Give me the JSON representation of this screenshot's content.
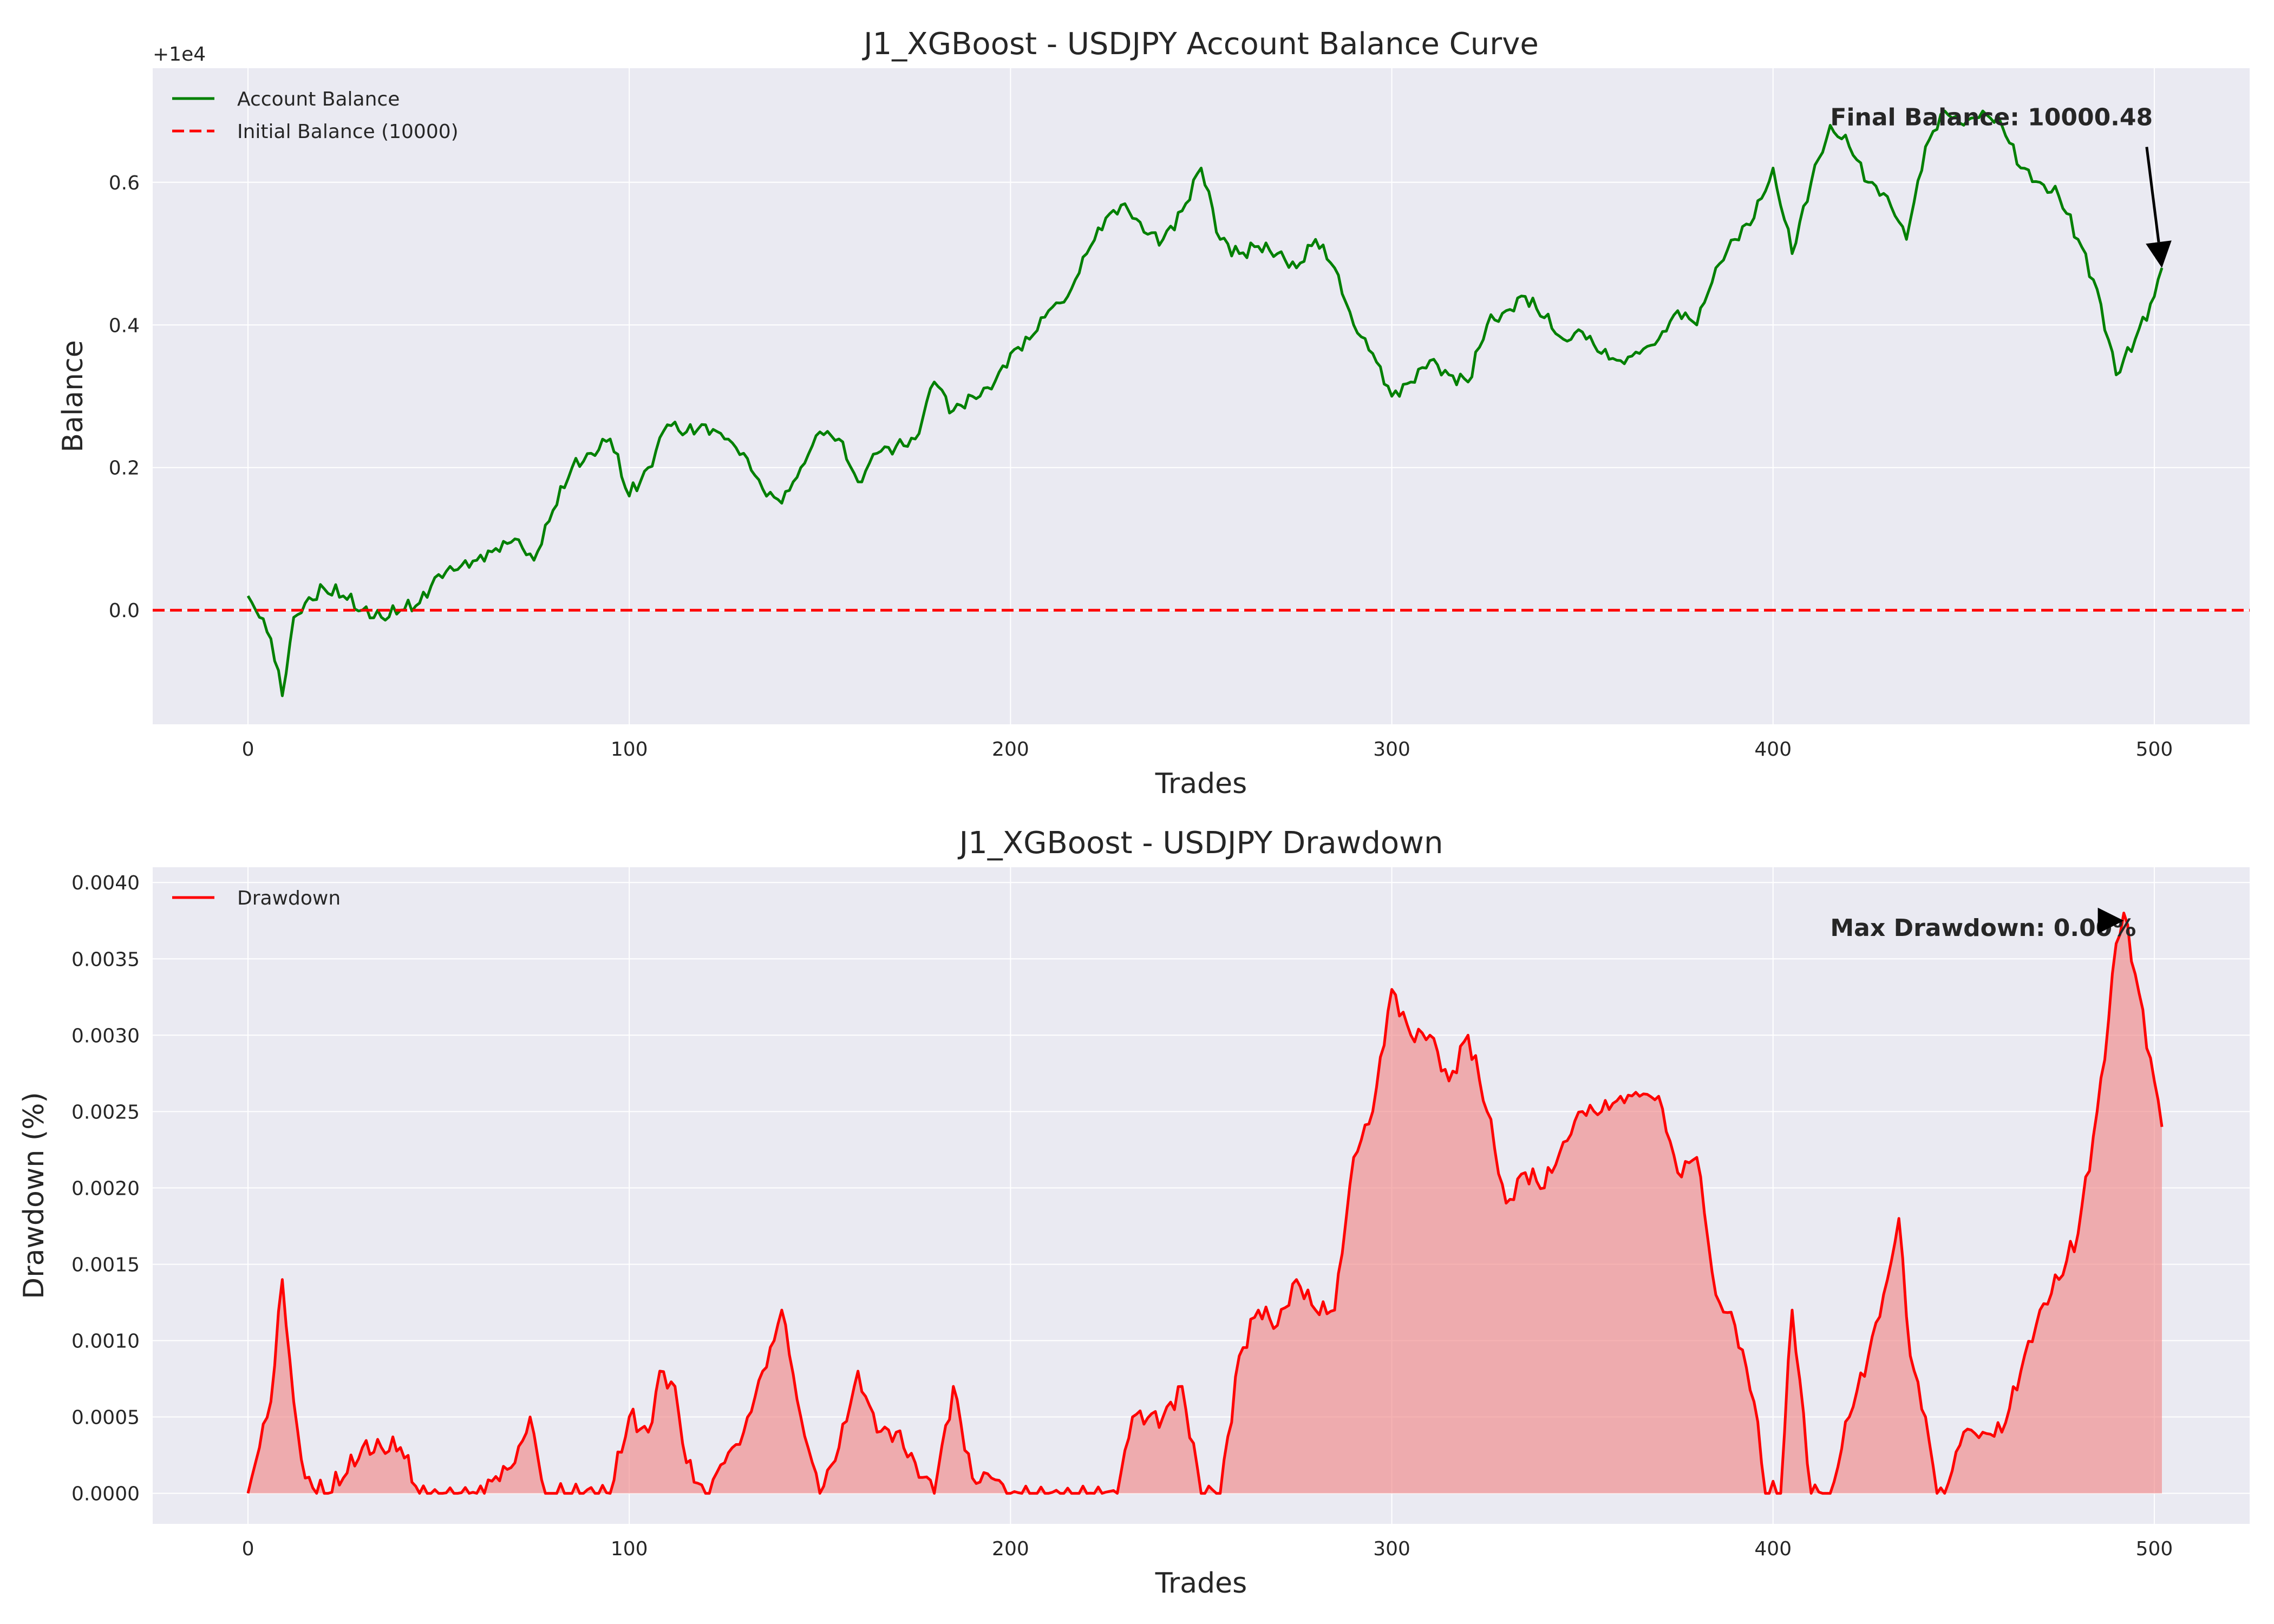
{
  "chart_data": [
    {
      "type": "line",
      "title": "J1_XGBoost - USDJPY Account Balance Curve",
      "xlabel": "Trades",
      "ylabel": "Balance",
      "offset_text": "+1e4",
      "xlim": [
        -25,
        525
      ],
      "ylim": [
        -0.16,
        0.76
      ],
      "xticks": [
        0,
        100,
        200,
        300,
        400,
        500
      ],
      "xtick_labels": [
        "0",
        "100",
        "200",
        "300",
        "400",
        "500"
      ],
      "yticks": [
        0.0,
        0.2,
        0.4,
        0.6
      ],
      "ytick_labels": [
        "0.0",
        "0.2",
        "0.4",
        "0.6"
      ],
      "grid": true,
      "legend_position": "upper-left",
      "series": [
        {
          "name": "Account Balance",
          "color": "#008000",
          "style": "solid",
          "anchors": [
            [
              0,
              0.02
            ],
            [
              3,
              -0.01
            ],
            [
              6,
              -0.04
            ],
            [
              9,
              -0.12
            ],
            [
              12,
              -0.01
            ],
            [
              15,
              0.01
            ],
            [
              20,
              0.03
            ],
            [
              25,
              0.02
            ],
            [
              30,
              0.0
            ],
            [
              35,
              -0.01
            ],
            [
              40,
              0.0
            ],
            [
              45,
              0.01
            ],
            [
              50,
              0.05
            ],
            [
              60,
              0.07
            ],
            [
              70,
              0.1
            ],
            [
              75,
              0.07
            ],
            [
              80,
              0.14
            ],
            [
              85,
              0.2
            ],
            [
              90,
              0.22
            ],
            [
              95,
              0.24
            ],
            [
              100,
              0.16
            ],
            [
              105,
              0.2
            ],
            [
              110,
              0.26
            ],
            [
              115,
              0.25
            ],
            [
              120,
              0.26
            ],
            [
              125,
              0.24
            ],
            [
              130,
              0.22
            ],
            [
              135,
              0.17
            ],
            [
              140,
              0.15
            ],
            [
              145,
              0.2
            ],
            [
              150,
              0.25
            ],
            [
              155,
              0.24
            ],
            [
              160,
              0.18
            ],
            [
              165,
              0.22
            ],
            [
              170,
              0.23
            ],
            [
              175,
              0.24
            ],
            [
              180,
              0.32
            ],
            [
              185,
              0.28
            ],
            [
              190,
              0.3
            ],
            [
              195,
              0.31
            ],
            [
              200,
              0.36
            ],
            [
              205,
              0.38
            ],
            [
              210,
              0.42
            ],
            [
              215,
              0.44
            ],
            [
              220,
              0.5
            ],
            [
              225,
              0.55
            ],
            [
              230,
              0.57
            ],
            [
              235,
              0.53
            ],
            [
              240,
              0.52
            ],
            [
              245,
              0.56
            ],
            [
              250,
              0.62
            ],
            [
              255,
              0.52
            ],
            [
              260,
              0.5
            ],
            [
              265,
              0.51
            ],
            [
              270,
              0.5
            ],
            [
              275,
              0.48
            ],
            [
              280,
              0.52
            ],
            [
              285,
              0.48
            ],
            [
              290,
              0.4
            ],
            [
              295,
              0.36
            ],
            [
              300,
              0.3
            ],
            [
              305,
              0.32
            ],
            [
              310,
              0.35
            ],
            [
              315,
              0.33
            ],
            [
              320,
              0.32
            ],
            [
              325,
              0.4
            ],
            [
              330,
              0.42
            ],
            [
              335,
              0.44
            ],
            [
              340,
              0.41
            ],
            [
              345,
              0.38
            ],
            [
              350,
              0.39
            ],
            [
              355,
              0.36
            ],
            [
              360,
              0.35
            ],
            [
              365,
              0.36
            ],
            [
              370,
              0.38
            ],
            [
              375,
              0.42
            ],
            [
              380,
              0.4
            ],
            [
              385,
              0.48
            ],
            [
              390,
              0.52
            ],
            [
              395,
              0.55
            ],
            [
              400,
              0.62
            ],
            [
              405,
              0.5
            ],
            [
              410,
              0.6
            ],
            [
              415,
              0.68
            ],
            [
              420,
              0.65
            ],
            [
              425,
              0.6
            ],
            [
              430,
              0.58
            ],
            [
              435,
              0.52
            ],
            [
              440,
              0.65
            ],
            [
              445,
              0.7
            ],
            [
              450,
              0.68
            ],
            [
              455,
              0.7
            ],
            [
              460,
              0.68
            ],
            [
              465,
              0.62
            ],
            [
              470,
              0.6
            ],
            [
              475,
              0.58
            ],
            [
              480,
              0.52
            ],
            [
              485,
              0.45
            ],
            [
              490,
              0.33
            ],
            [
              495,
              0.38
            ],
            [
              500,
              0.44
            ],
            [
              502,
              0.48
            ]
          ]
        },
        {
          "name": "Initial Balance (10000)",
          "color": "#ff0000",
          "style": "dashed",
          "y": 0.0
        }
      ],
      "annotations": [
        {
          "text": "Final Balance: 10000.48",
          "point": [
            502,
            0.48
          ],
          "text_at": [
            415,
            0.68
          ]
        }
      ]
    },
    {
      "type": "area",
      "title": "J1_XGBoost - USDJPY Drawdown",
      "xlabel": "Trades",
      "ylabel": "Drawdown (%)",
      "xlim": [
        -25,
        525
      ],
      "ylim": [
        -0.0002,
        0.0041
      ],
      "xticks": [
        0,
        100,
        200,
        300,
        400,
        500
      ],
      "xtick_labels": [
        "0",
        "100",
        "200",
        "300",
        "400",
        "500"
      ],
      "yticks": [
        0.0,
        0.0005,
        0.001,
        0.0015,
        0.002,
        0.0025,
        0.003,
        0.0035,
        0.004
      ],
      "ytick_labels": [
        "0.0000",
        "0.0005",
        "0.0010",
        "0.0015",
        "0.0020",
        "0.0025",
        "0.0030",
        "0.0035",
        "0.0040"
      ],
      "grid": true,
      "legend_position": "upper-left",
      "series": [
        {
          "name": "Drawdown",
          "color": "#ff0000",
          "fill_color": "#f08080",
          "anchors": [
            [
              0,
              0.0
            ],
            [
              3,
              0.0003
            ],
            [
              6,
              0.0006
            ],
            [
              9,
              0.0014
            ],
            [
              12,
              0.0006
            ],
            [
              15,
              0.0001
            ],
            [
              20,
              0.0
            ],
            [
              25,
              0.0001
            ],
            [
              30,
              0.0003
            ],
            [
              35,
              0.0003
            ],
            [
              40,
              0.0003
            ],
            [
              45,
              0.0
            ],
            [
              50,
              0.0
            ],
            [
              60,
              0.0
            ],
            [
              70,
              0.0002
            ],
            [
              74,
              0.0005
            ],
            [
              78,
              0.0
            ],
            [
              85,
              0.0
            ],
            [
              95,
              0.0
            ],
            [
              100,
              0.0005
            ],
            [
              105,
              0.0004
            ],
            [
              108,
              0.0008
            ],
            [
              112,
              0.0007
            ],
            [
              115,
              0.0002
            ],
            [
              120,
              0.0
            ],
            [
              125,
              0.0002
            ],
            [
              130,
              0.0004
            ],
            [
              135,
              0.0008
            ],
            [
              138,
              0.001
            ],
            [
              140,
              0.0012
            ],
            [
              145,
              0.0005
            ],
            [
              150,
              0.0
            ],
            [
              155,
              0.0003
            ],
            [
              160,
              0.0008
            ],
            [
              165,
              0.0004
            ],
            [
              170,
              0.0004
            ],
            [
              175,
              0.0002
            ],
            [
              180,
              0.0
            ],
            [
              185,
              0.0007
            ],
            [
              190,
              0.0001
            ],
            [
              195,
              0.0001
            ],
            [
              200,
              0.0
            ],
            [
              210,
              0.0
            ],
            [
              220,
              0.0
            ],
            [
              228,
              0.0
            ],
            [
              232,
              0.0005
            ],
            [
              240,
              0.0005
            ],
            [
              245,
              0.0007
            ],
            [
              250,
              0.0
            ],
            [
              255,
              0.0
            ],
            [
              260,
              0.0009
            ],
            [
              265,
              0.0012
            ],
            [
              270,
              0.0011
            ],
            [
              275,
              0.0014
            ],
            [
              280,
              0.0012
            ],
            [
              285,
              0.0012
            ],
            [
              290,
              0.0022
            ],
            [
              295,
              0.0025
            ],
            [
              300,
              0.0033
            ],
            [
              305,
              0.003
            ],
            [
              310,
              0.003
            ],
            [
              315,
              0.0027
            ],
            [
              320,
              0.003
            ],
            [
              325,
              0.0025
            ],
            [
              330,
              0.0019
            ],
            [
              335,
              0.0021
            ],
            [
              340,
              0.002
            ],
            [
              345,
              0.0023
            ],
            [
              350,
              0.0025
            ],
            [
              355,
              0.0025
            ],
            [
              360,
              0.0026
            ],
            [
              365,
              0.0026
            ],
            [
              370,
              0.0026
            ],
            [
              375,
              0.0021
            ],
            [
              380,
              0.0022
            ],
            [
              385,
              0.0013
            ],
            [
              390,
              0.0011
            ],
            [
              395,
              0.0006
            ],
            [
              398,
              0.0
            ],
            [
              402,
              0.0
            ],
            [
              405,
              0.0012
            ],
            [
              410,
              0.0
            ],
            [
              415,
              0.0
            ],
            [
              420,
              0.0005
            ],
            [
              425,
              0.0009
            ],
            [
              430,
              0.0014
            ],
            [
              433,
              0.0018
            ],
            [
              436,
              0.0009
            ],
            [
              440,
              0.0005
            ],
            [
              443,
              0.0
            ],
            [
              445,
              0.0
            ],
            [
              450,
              0.0004
            ],
            [
              455,
              0.0004
            ],
            [
              460,
              0.0004
            ],
            [
              465,
              0.0008
            ],
            [
              470,
              0.0012
            ],
            [
              475,
              0.0014
            ],
            [
              480,
              0.0017
            ],
            [
              485,
              0.0025
            ],
            [
              488,
              0.0031
            ],
            [
              490,
              0.0036
            ],
            [
              492,
              0.0038
            ],
            [
              495,
              0.0034
            ],
            [
              500,
              0.0027
            ],
            [
              502,
              0.0024
            ]
          ]
        }
      ],
      "annotations": [
        {
          "text": "Max Drawdown: 0.00%",
          "point": [
            492,
            0.00375
          ],
          "text_at": [
            415,
            0.00365
          ]
        }
      ]
    }
  ]
}
